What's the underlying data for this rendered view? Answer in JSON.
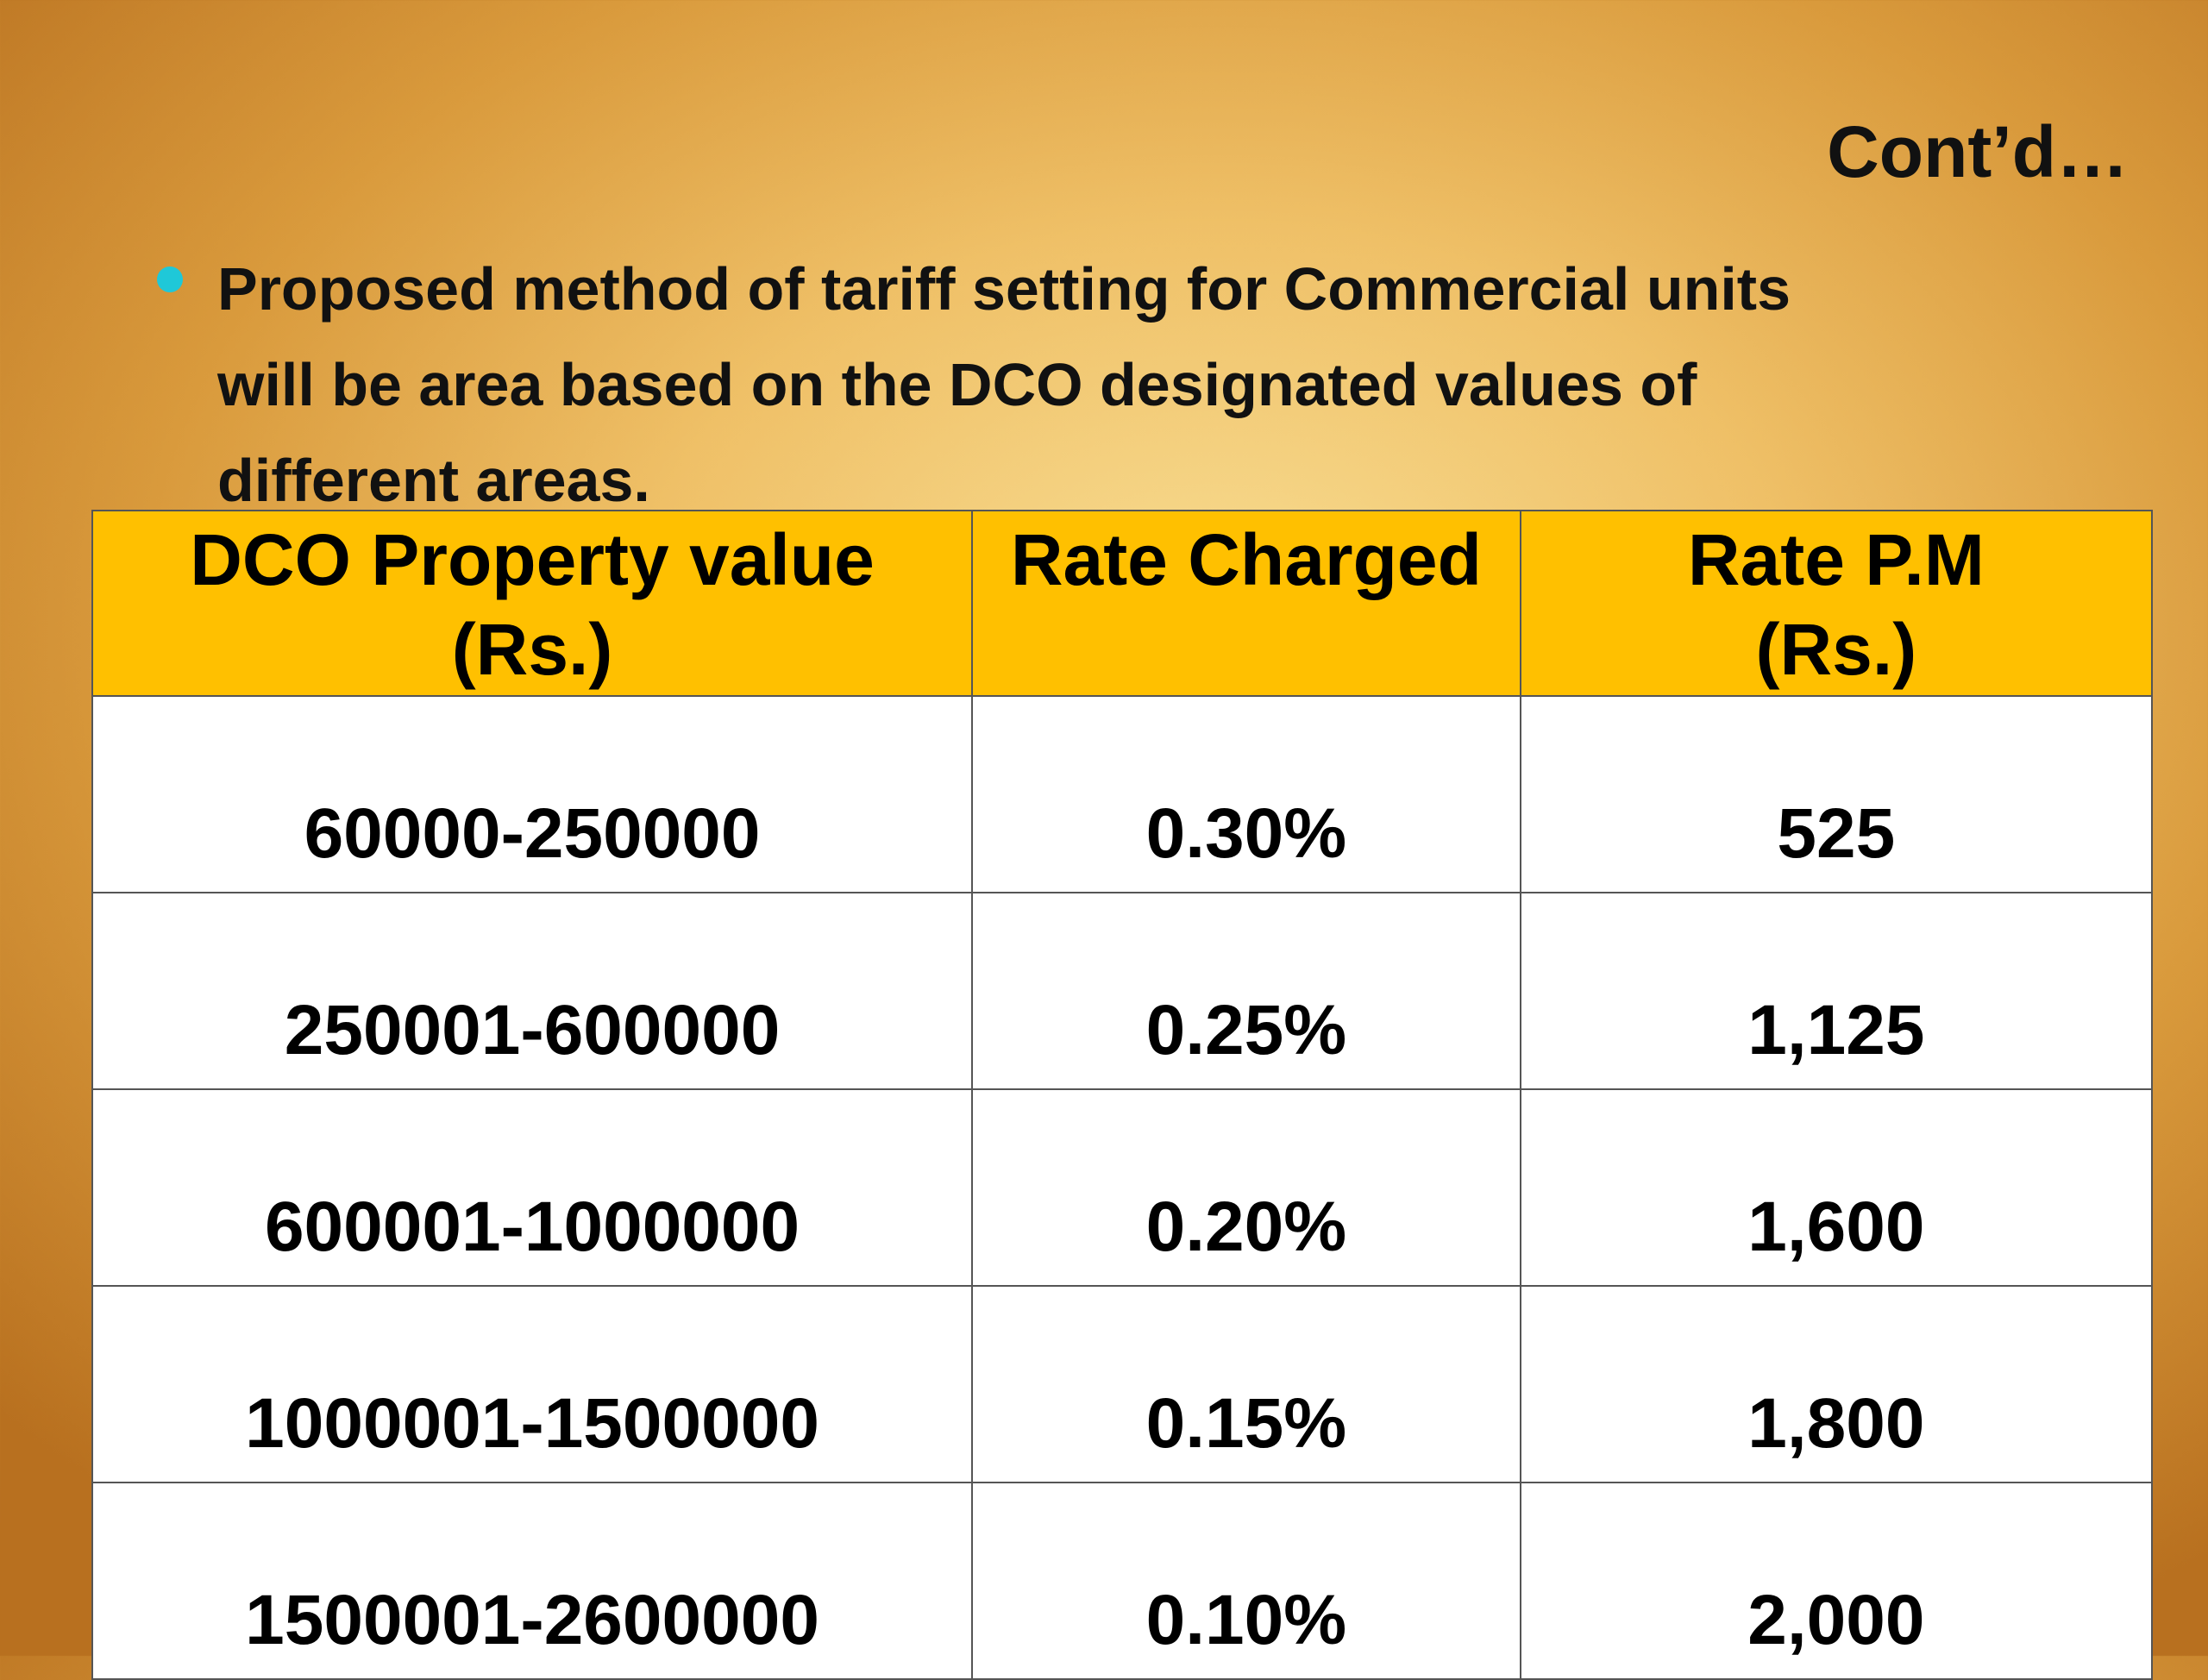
{
  "header": {
    "title": "Cont’d…"
  },
  "bullet": {
    "lines": [
      "Proposed method of tariff setting  for Commercial units",
      "will be  area based on the DCO designated values of",
      "different areas."
    ]
  },
  "table": {
    "header": [
      [
        "DCO Property value",
        "(Rs.)"
      ],
      [
        "Rate Charged"
      ],
      [
        "Rate P.M",
        "(Rs.)"
      ]
    ],
    "rows": [
      [
        "60000-250000",
        "0.30%",
        "525"
      ],
      [
        "250001-600000",
        "0.25%",
        "1,125"
      ],
      [
        "600001-1000000",
        "0.20%",
        "1,600"
      ],
      [
        "1000001-1500000",
        "0.15%",
        "1,800"
      ],
      [
        "1500001-2600000",
        "0.10%",
        "2,000"
      ]
    ]
  }
}
